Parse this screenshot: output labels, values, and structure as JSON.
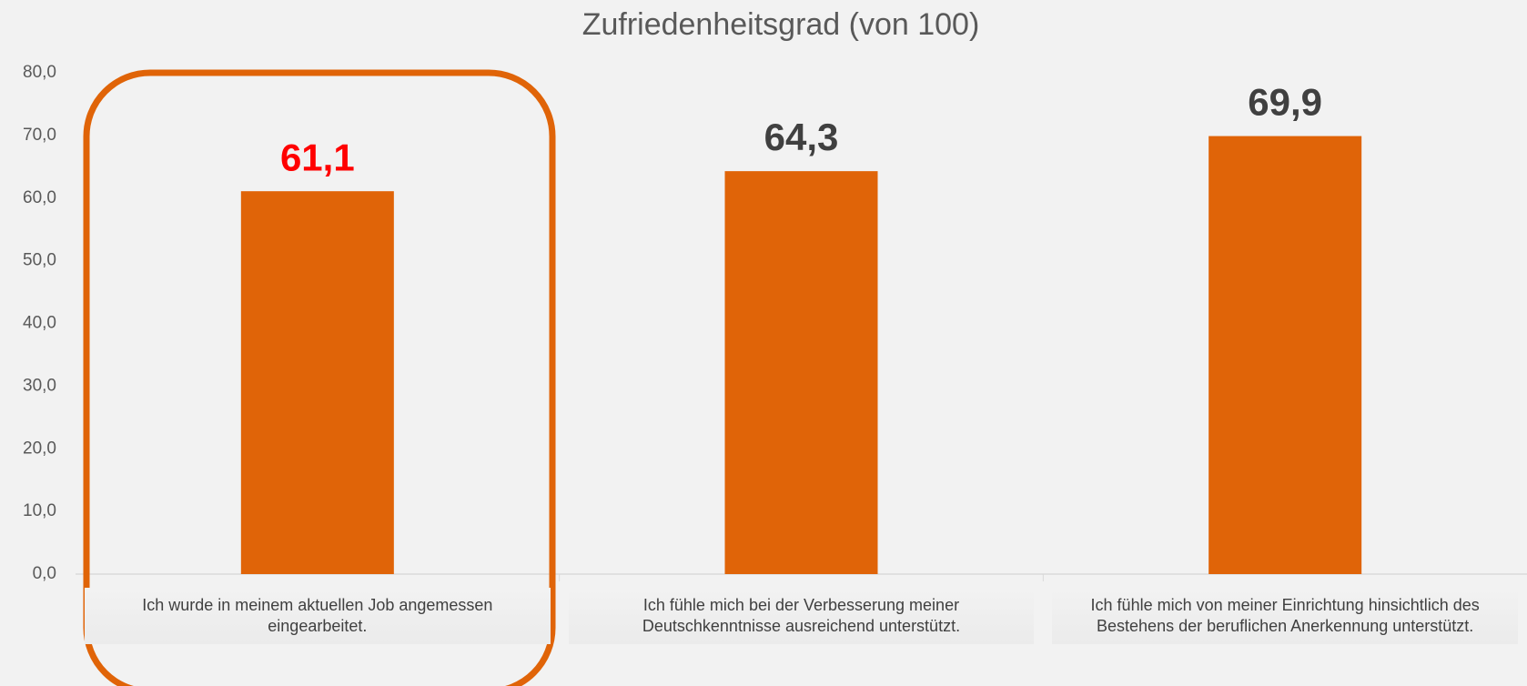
{
  "chart_data": {
    "type": "bar",
    "title": "Zufriedenheitsgrad (von 100)",
    "categories": [
      "Ich wurde in meinem aktuellen Job angemessen eingearbeitet.",
      "Ich fühle mich bei der Verbesserung meiner Deutschkenntnisse ausreichend unterstützt.",
      "Ich fühle mich von meiner Einrichtung hinsichtlich des Bestehens der beruflichen Anerkennung unterstützt."
    ],
    "values": [
      61.1,
      64.3,
      69.9
    ],
    "value_labels": [
      "61,1",
      "64,3",
      "69,9"
    ],
    "value_label_colors": [
      "#ff0000",
      "#404040",
      "#404040"
    ],
    "color": "#e06408",
    "ylim": [
      0,
      80
    ],
    "yticks": [
      {
        "value": 0,
        "label": "0,0"
      },
      {
        "value": 10,
        "label": "10,0"
      },
      {
        "value": 20,
        "label": "20,0"
      },
      {
        "value": 30,
        "label": "30,0"
      },
      {
        "value": 40,
        "label": "40,0"
      },
      {
        "value": 50,
        "label": "50,0"
      },
      {
        "value": 60,
        "label": "60,0"
      },
      {
        "value": 70,
        "label": "70,0"
      },
      {
        "value": 80,
        "label": "80,0"
      }
    ],
    "grid": false
  }
}
